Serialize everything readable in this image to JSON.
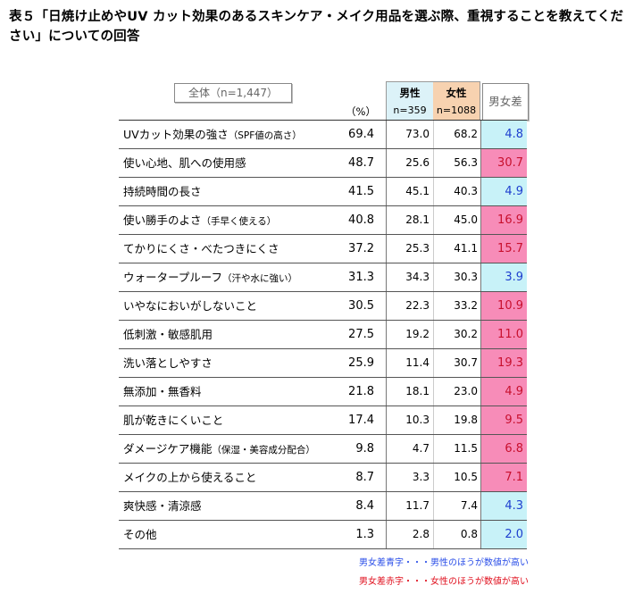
{
  "title": "表５「日焼け止めやUV カット効果のあるスキンケア・メイク用品を選ぶ際、重視することを教えてください」についての回答",
  "overall_header": "全体（n=1,447）",
  "pct_label": "（%）",
  "male_header": {
    "label": "男性",
    "n": "n=359"
  },
  "female_header": {
    "label": "女性",
    "n": "n=1088"
  },
  "diff_header": "男女差",
  "colors": {
    "male_header_bg": "#dcf2f8",
    "female_header_bg": "#f7d2b0",
    "blue_cell": "#c8f2f8",
    "red_cell": "#f78cb8"
  },
  "rows": [
    {
      "label": "UVカット効果の強さ",
      "sub": "（SPF値の高さ）",
      "overall": "69.4",
      "male": "73.0",
      "female": "68.2",
      "diff": "4.8",
      "side": "male"
    },
    {
      "label": "使い心地、肌への使用感",
      "sub": "",
      "overall": "48.7",
      "male": "25.6",
      "female": "56.3",
      "diff": "30.7",
      "side": "female"
    },
    {
      "label": "持続時間の長さ",
      "sub": "",
      "overall": "41.5",
      "male": "45.1",
      "female": "40.3",
      "diff": "4.9",
      "side": "male"
    },
    {
      "label": "使い勝手のよさ",
      "sub": "（手早く使える）",
      "overall": "40.8",
      "male": "28.1",
      "female": "45.0",
      "diff": "16.9",
      "side": "female"
    },
    {
      "label": "てかりにくさ・べたつきにくさ",
      "sub": "",
      "overall": "37.2",
      "male": "25.3",
      "female": "41.1",
      "diff": "15.7",
      "side": "female"
    },
    {
      "label": "ウォータープルーフ",
      "sub": "（汗や水に強い）",
      "overall": "31.3",
      "male": "34.3",
      "female": "30.3",
      "diff": "3.9",
      "side": "male"
    },
    {
      "label": "いやなにおいがしないこと",
      "sub": "",
      "overall": "30.5",
      "male": "22.3",
      "female": "33.2",
      "diff": "10.9",
      "side": "female"
    },
    {
      "label": "低刺激・敏感肌用",
      "sub": "",
      "overall": "27.5",
      "male": "19.2",
      "female": "30.2",
      "diff": "11.0",
      "side": "female"
    },
    {
      "label": "洗い落としやすさ",
      "sub": "",
      "overall": "25.9",
      "male": "11.4",
      "female": "30.7",
      "diff": "19.3",
      "side": "female"
    },
    {
      "label": "無添加・無香料",
      "sub": "",
      "overall": "21.8",
      "male": "18.1",
      "female": "23.0",
      "diff": "4.9",
      "side": "female"
    },
    {
      "label": "肌が乾きにくいこと",
      "sub": "",
      "overall": "17.4",
      "male": "10.3",
      "female": "19.8",
      "diff": "9.5",
      "side": "female"
    },
    {
      "label": "ダメージケア機能",
      "sub": "（保湿・美容成分配合）",
      "overall": "9.8",
      "male": "4.7",
      "female": "11.5",
      "diff": "6.8",
      "side": "female"
    },
    {
      "label": "メイクの上から使えること",
      "sub": "",
      "overall": "8.7",
      "male": "3.3",
      "female": "10.5",
      "diff": "7.1",
      "side": "female"
    },
    {
      "label": "爽快感・清涼感",
      "sub": "",
      "overall": "8.4",
      "male": "11.7",
      "female": "7.4",
      "diff": "4.3",
      "side": "male"
    },
    {
      "label": "その他",
      "sub": "",
      "overall": "1.3",
      "male": "2.8",
      "female": "0.8",
      "diff": "2.0",
      "side": "male"
    }
  ],
  "notes": {
    "blue": "男女差青字・・・男性のほうが数値が高い",
    "red": "男女差赤字・・・女性のほうが数値が高い"
  }
}
